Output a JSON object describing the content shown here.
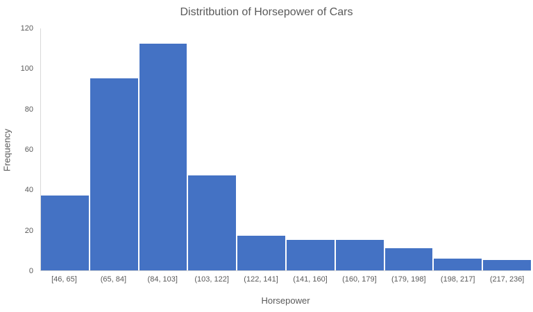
{
  "chart_data": {
    "type": "bar",
    "chart_kind": "histogram",
    "title": "Distritbution of Horsepower of Cars",
    "xlabel": "Horsepower",
    "ylabel": "Frequency",
    "categories": [
      "[46, 65]",
      "(65, 84]",
      "(84, 103]",
      "(103, 122]",
      "(122, 141]",
      "(141, 160]",
      "(160, 179]",
      "(179, 198]",
      "(198, 217]",
      "(217, 236]"
    ],
    "values": [
      37,
      95,
      112,
      47,
      17,
      15,
      15,
      11,
      6,
      5
    ],
    "ylim": [
      0,
      120
    ],
    "yticks": [
      0,
      20,
      40,
      60,
      80,
      100,
      120
    ],
    "grid": false,
    "legend": false,
    "colors": {
      "bar_fill": "#4472C4",
      "bar_separator": "#FFFFFF",
      "text": "#595959",
      "axis_line": "#D9D9D9"
    }
  }
}
